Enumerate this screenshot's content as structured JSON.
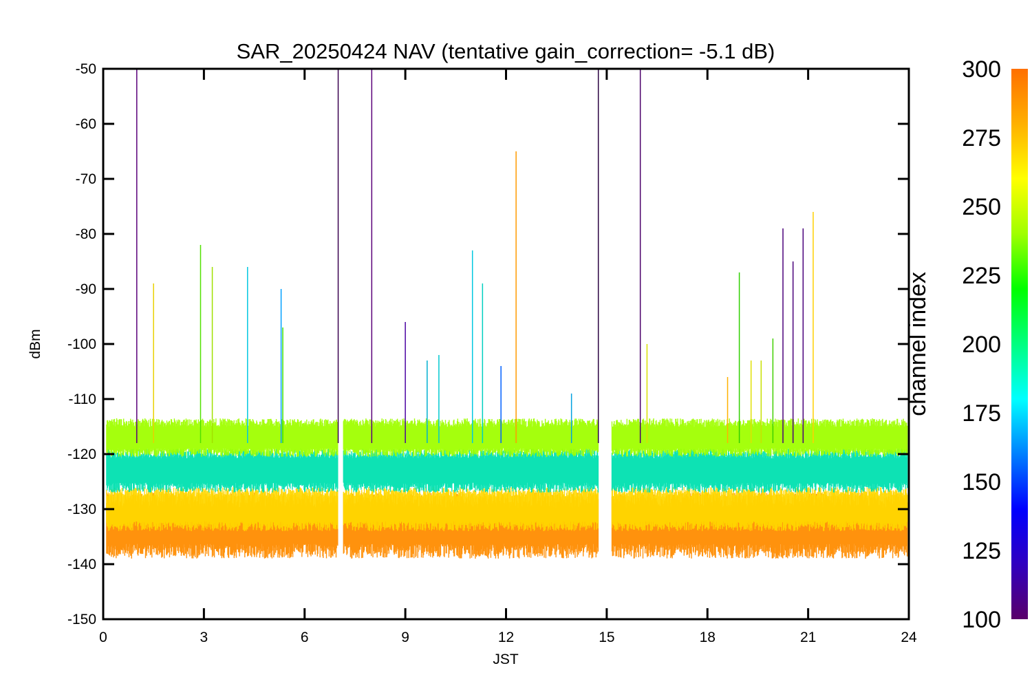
{
  "chart_data": {
    "type": "line",
    "title": "SAR_20250424 NAV (tentative gain_correction= -5.1 dB)",
    "xlabel": "JST",
    "ylabel": "dBm",
    "xlim": [
      0,
      24
    ],
    "ylim": [
      -150,
      -50
    ],
    "x_ticks": [
      "0",
      "3",
      "6",
      "9",
      "12",
      "15",
      "18",
      "21",
      "24"
    ],
    "y_ticks": [
      "-50",
      "-60",
      "-70",
      "-80",
      "-90",
      "-100",
      "-110",
      "-120",
      "-130",
      "-140",
      "-150"
    ],
    "gaps": [
      [
        7.0,
        7.15
      ],
      [
        14.75,
        15.15
      ]
    ],
    "series": [
      {
        "channel_band": "orange (~280-300)",
        "center": -133,
        "spread": 6,
        "color": "#ff8c00"
      },
      {
        "channel_band": "yellow (~265-275)",
        "center": -130,
        "spread": 4,
        "color": "#ffd700"
      },
      {
        "channel_band": "cyan/green (~190-230)",
        "center": -123,
        "spread": 4,
        "color": "#00e0b0"
      },
      {
        "channel_band": "yellow-green (~255)",
        "center": -117,
        "spread": 3.5,
        "color": "#a0ff00"
      }
    ],
    "spikes": [
      {
        "x": 1.0,
        "top": -50,
        "color": "#5a007a"
      },
      {
        "x": 1.5,
        "top": -89,
        "color": "#e8d000"
      },
      {
        "x": 2.9,
        "top": -82,
        "color": "#50e000"
      },
      {
        "x": 3.25,
        "top": -86,
        "color": "#a0e000"
      },
      {
        "x": 4.3,
        "top": -86,
        "color": "#00c8e0"
      },
      {
        "x": 5.3,
        "top": -90,
        "color": "#00a0ff"
      },
      {
        "x": 5.35,
        "top": -97,
        "color": "#40e000"
      },
      {
        "x": 7.0,
        "top": -50,
        "color": "#3a0050"
      },
      {
        "x": 8.0,
        "top": -50,
        "color": "#5a007a"
      },
      {
        "x": 9.0,
        "top": -96,
        "color": "#4a00a0"
      },
      {
        "x": 9.65,
        "top": -103,
        "color": "#00b0d0"
      },
      {
        "x": 10.0,
        "top": -102,
        "color": "#00c8d0"
      },
      {
        "x": 11.0,
        "top": -83,
        "color": "#00c8e0"
      },
      {
        "x": 11.3,
        "top": -89,
        "color": "#00d0c0"
      },
      {
        "x": 11.85,
        "top": -104,
        "color": "#0060ff"
      },
      {
        "x": 12.3,
        "top": -65,
        "color": "#ff9a00"
      },
      {
        "x": 13.95,
        "top": -109,
        "color": "#00a0e0"
      },
      {
        "x": 14.75,
        "top": -50,
        "color": "#2a0040"
      },
      {
        "x": 16.0,
        "top": -50,
        "color": "#4a006a"
      },
      {
        "x": 16.2,
        "top": -100,
        "color": "#d8e000"
      },
      {
        "x": 18.6,
        "top": -106,
        "color": "#ffb000"
      },
      {
        "x": 18.95,
        "top": -87,
        "color": "#30d000"
      },
      {
        "x": 19.3,
        "top": -103,
        "color": "#e0e000"
      },
      {
        "x": 19.6,
        "top": -103,
        "color": "#c8e000"
      },
      {
        "x": 19.95,
        "top": -99,
        "color": "#40d000"
      },
      {
        "x": 20.25,
        "top": -79,
        "color": "#4a007a"
      },
      {
        "x": 20.55,
        "top": -85,
        "color": "#4a007a"
      },
      {
        "x": 20.85,
        "top": -79,
        "color": "#4a007a"
      },
      {
        "x": 21.15,
        "top": -76,
        "color": "#ffd000"
      }
    ]
  },
  "colorbar": {
    "label": "channel index",
    "range": [
      100,
      300
    ],
    "ticks": [
      "300",
      "275",
      "250",
      "225",
      "200",
      "175",
      "150",
      "125",
      "100"
    ],
    "stops": [
      "#5a006a",
      "#3000c0",
      "#0000ff",
      "#0080ff",
      "#00ffff",
      "#00ff80",
      "#00ff00",
      "#a0ff00",
      "#ffff00",
      "#ffb000",
      "#ff7000"
    ]
  }
}
